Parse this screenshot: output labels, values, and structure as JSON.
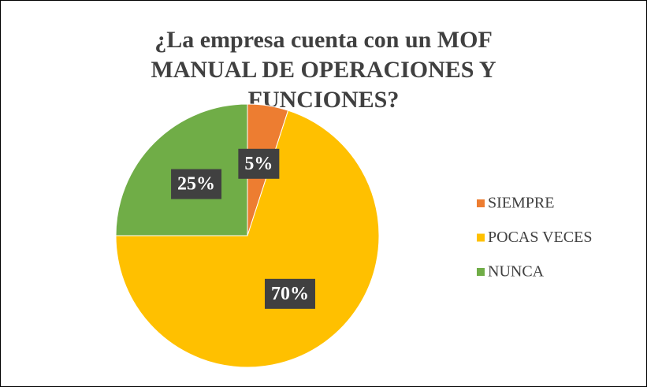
{
  "chart_data": {
    "type": "pie",
    "title": "¿La empresa cuenta con un MOF MANUAL DE OPERACIONES Y FUNCIONES?",
    "categories": [
      "SIEMPRE",
      "POCAS VECES",
      "NUNCA"
    ],
    "values": [
      5,
      70,
      25
    ],
    "value_labels": [
      "5%",
      "70%",
      "25%"
    ],
    "colors": [
      "#ed7d31",
      "#ffc000",
      "#70ad47"
    ],
    "legend": "right"
  }
}
